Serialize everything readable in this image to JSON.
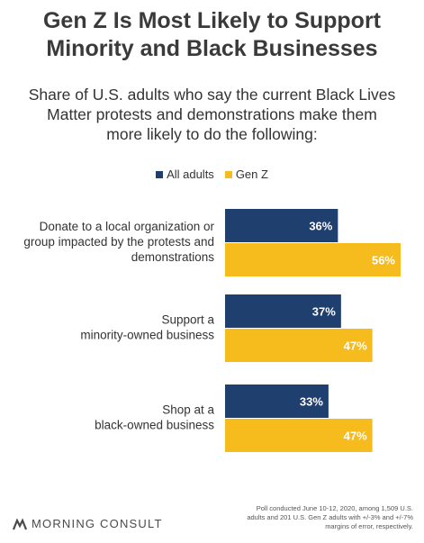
{
  "header": {
    "title_line1": "Gen Z Is Most Likely to Support",
    "title_line2": "Minority and Black Businesses",
    "subtitle_line1": "Share of U.S. adults who say the current Black Lives",
    "subtitle_line2": "Matter protests and demonstrations make them",
    "subtitle_line3": "more likely to do the following:"
  },
  "legend": {
    "all_adults": "All adults",
    "gen_z": "Gen Z"
  },
  "colors": {
    "all_adults": "#1f3f6e",
    "gen_z": "#f6bb1c"
  },
  "chart_data": {
    "type": "bar",
    "orientation": "horizontal",
    "categories": [
      [
        "Donate to a local organization or",
        "group impacted by the protests and",
        "demonstrations"
      ],
      [
        "Support a",
        "minority-owned business"
      ],
      [
        "Shop at a",
        "black-owned business"
      ]
    ],
    "series": [
      {
        "name": "All adults",
        "values": [
          36,
          37,
          33
        ]
      },
      {
        "name": "Gen Z",
        "values": [
          56,
          47,
          47
        ]
      }
    ],
    "value_suffix": "%",
    "xlim": [
      0,
      56
    ],
    "legend_position": "top-center",
    "grid": false
  },
  "footer": {
    "brand": "MORNING CONSULT",
    "note_line1": "Poll conducted June 10-12, 2020, among 1,509 U.S.",
    "note_line2": "adults and 201 U.S. Gen Z adults with +/-3% and +/-7%",
    "note_line3": "margins of error, respectively."
  }
}
